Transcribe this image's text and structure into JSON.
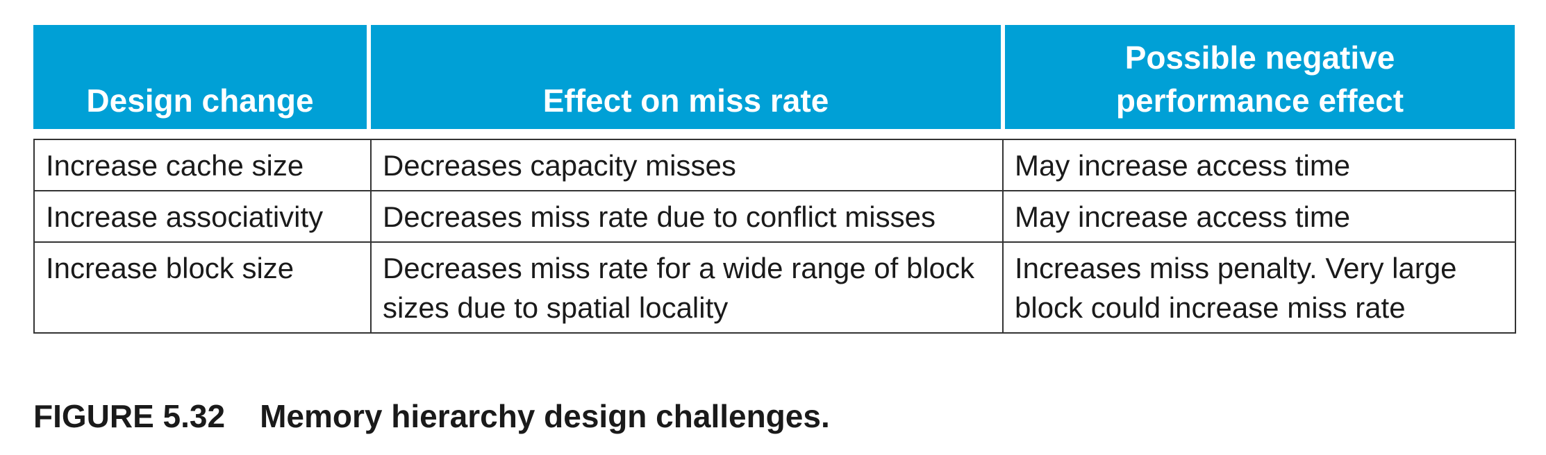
{
  "table": {
    "headers": [
      "Design change",
      "Effect on miss rate",
      "Possible negative performance effect"
    ],
    "header_lines": [
      [
        "Design change"
      ],
      [
        "Effect on miss rate"
      ],
      [
        "Possible negative",
        "performance effect"
      ]
    ],
    "rows": [
      {
        "change": "Increase cache size",
        "effect": "Decreases capacity misses",
        "negative": "May increase access time"
      },
      {
        "change": "Increase associativity",
        "effect": "Decreases miss rate due to conflict misses",
        "negative": "May increase access time"
      },
      {
        "change": "Increase block size",
        "effect": "Decreases miss rate for a wide range of block sizes due to spatial locality",
        "negative": "Increases miss penalty. Very large block could increase miss rate"
      }
    ],
    "header_color": "#00a0d6"
  },
  "caption": {
    "label": "FIGURE 5.32",
    "text": "Memory hierarchy design challenges."
  }
}
